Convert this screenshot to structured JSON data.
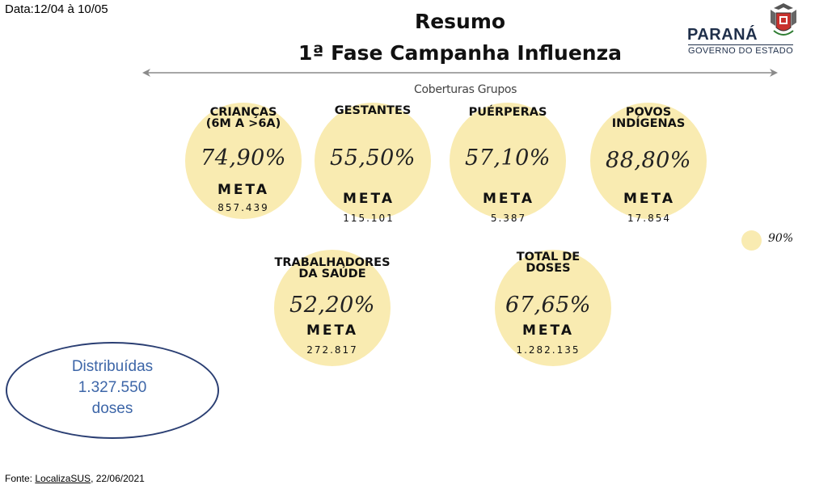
{
  "date_range": "Data:12/04 à 10/05",
  "title_line1": "Resumo",
  "title_line2": "1ª Fase Campanha Influenza",
  "subtitle": "Coberturas Grupos",
  "logo": {
    "name": "PARANÁ",
    "sub": "GOVERNO DO ESTADO",
    "crest": "parana-coat-of-arms"
  },
  "meta_label": "META",
  "groups": {
    "criancas": {
      "label1": "CRIANÇAS",
      "label2": "(6M A >6A)",
      "coverage": "74,90%",
      "meta": "857.439"
    },
    "gestantes": {
      "label1": "GESTANTES",
      "coverage": "55,50%",
      "meta": "115.101"
    },
    "puerperas": {
      "label1": "PUÉRPERAS",
      "coverage": "57,10%",
      "meta": "5.387"
    },
    "indigenas": {
      "label1": "POVOS",
      "label2": "INDÍGENAS",
      "coverage": "88,80%",
      "meta": "17.854"
    },
    "trabalhadores": {
      "label1": "TRABALHADORES",
      "label2": "DA SAÚDE",
      "coverage": "52,20%",
      "meta": "272.817"
    },
    "total": {
      "label1": "TOTAL DE",
      "label2": "DOSES",
      "coverage": "67,65%",
      "meta": "1.282.135"
    }
  },
  "legend": {
    "label": "90%",
    "color": "#f9ebb1"
  },
  "distribuidas": {
    "line1": "Distribuídas",
    "line2": "1.327.550",
    "line3": "doses"
  },
  "source": {
    "prefix": "Fonte: ",
    "link": "LocalizaSUS",
    "suffix": ", 22/06/2021"
  }
}
